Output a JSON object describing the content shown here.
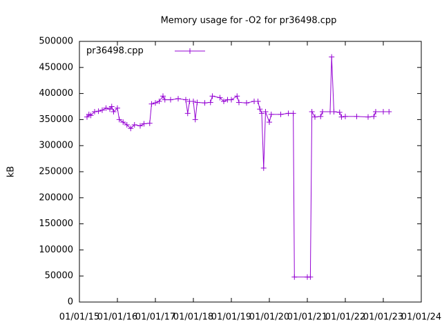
{
  "chart_data": {
    "type": "line",
    "title": "Memory usage for -O2 for pr36498.cpp",
    "y_label": "kB",
    "legend": "top left",
    "xlim": [
      2015,
      2024
    ],
    "xticks": [
      {
        "value": 2015,
        "label": "01/01/15"
      },
      {
        "value": 2016,
        "label": "01/01/16"
      },
      {
        "value": 2017,
        "label": "01/01/17"
      },
      {
        "value": 2018,
        "label": "01/01/18"
      },
      {
        "value": 2019,
        "label": "01/01/19"
      },
      {
        "value": 2020,
        "label": "01/01/20"
      },
      {
        "value": 2021,
        "label": "01/01/21"
      },
      {
        "value": 2022,
        "label": "01/01/22"
      },
      {
        "value": 2023,
        "label": "01/01/23"
      },
      {
        "value": 2024,
        "label": "01/01/24"
      }
    ],
    "ylim": [
      0,
      500000
    ],
    "yticks": [
      0,
      50000,
      100000,
      150000,
      200000,
      250000,
      300000,
      350000,
      400000,
      450000,
      500000
    ],
    "x": [
      2015.2,
      2015.25,
      2015.3,
      2015.4,
      2015.5,
      2015.6,
      2015.7,
      2015.8,
      2015.85,
      2015.9,
      2016.0,
      2016.05,
      2016.15,
      2016.25,
      2016.35,
      2016.45,
      2016.6,
      2016.7,
      2016.85,
      2016.9,
      2017.0,
      2017.1,
      2017.2,
      2017.25,
      2017.4,
      2017.6,
      2017.8,
      2017.85,
      2017.9,
      2018.0,
      2018.05,
      2018.1,
      2018.3,
      2018.45,
      2018.5,
      2018.7,
      2018.8,
      2018.9,
      2019.0,
      2019.15,
      2019.2,
      2019.4,
      2019.6,
      2019.7,
      2019.75,
      2019.8,
      2019.85,
      2019.9,
      2020.0,
      2020.05,
      2020.3,
      2020.5,
      2020.63,
      2020.66,
      2021.0,
      2021.08,
      2021.12,
      2021.2,
      2021.35,
      2021.4,
      2021.6,
      2021.64,
      2021.7,
      2021.85,
      2021.9,
      2022.0,
      2022.3,
      2022.6,
      2022.75,
      2022.8,
      2023.0,
      2023.15
    ],
    "series": [
      {
        "name": "pr36498.cpp",
        "color": "#9400d3",
        "values": [
          355000,
          360000,
          358000,
          365000,
          366000,
          368000,
          372000,
          370000,
          375000,
          365000,
          372000,
          350000,
          345000,
          340000,
          333000,
          340000,
          338000,
          342000,
          343000,
          380000,
          382000,
          385000,
          395000,
          388000,
          388000,
          390000,
          388000,
          362000,
          385000,
          385000,
          350000,
          383000,
          382000,
          383000,
          395000,
          392000,
          385000,
          388000,
          388000,
          395000,
          383000,
          382000,
          385000,
          385000,
          370000,
          362000,
          257000,
          365000,
          345000,
          360000,
          360000,
          362000,
          362000,
          48000,
          48000,
          48000,
          365000,
          355000,
          356000,
          365000,
          365000,
          470000,
          365000,
          364000,
          355000,
          356000,
          356000,
          355000,
          356000,
          365000,
          365000,
          365000
        ]
      }
    ]
  }
}
